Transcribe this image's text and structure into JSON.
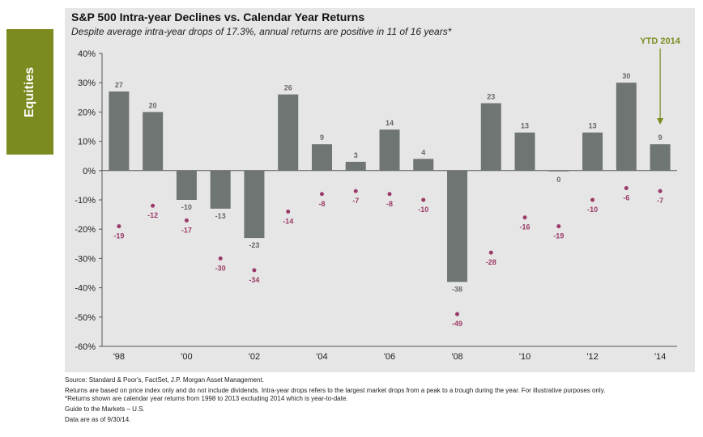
{
  "side_tab": {
    "label": "Equities"
  },
  "colors": {
    "bar": "#6e7572",
    "drop": "#9b3a68",
    "annotation": "#7d8a1f",
    "tab": "#7d8a1f",
    "panel": "#e6e6e6"
  },
  "chart_data": {
    "type": "bar",
    "title": "S&P 500 Intra-year Declines vs. Calendar Year Returns",
    "subtitle": "Despite average intra-year drops of 17.3%, annual returns are positive in 11 of 16 years*",
    "ylim": [
      -60,
      40
    ],
    "yticks": [
      40,
      30,
      20,
      10,
      0,
      -10,
      -20,
      -30,
      -40,
      -50,
      -60
    ],
    "ytick_labels": [
      "40%",
      "30%",
      "20%",
      "10%",
      "0%",
      "-10%",
      "-20%",
      "-30%",
      "-40%",
      "-50%",
      "-60%"
    ],
    "years": [
      1998,
      1999,
      2000,
      2001,
      2002,
      2003,
      2004,
      2005,
      2006,
      2007,
      2008,
      2009,
      2010,
      2011,
      2012,
      2013,
      2014
    ],
    "xtick_labels": [
      "'98",
      "'00",
      "'02",
      "'04",
      "'06",
      "'08",
      "'10",
      "'12",
      "'14"
    ],
    "series": [
      {
        "name": "Calendar year return",
        "kind": "bar",
        "values": [
          27,
          20,
          -10,
          -13,
          -23,
          26,
          9,
          3,
          14,
          4,
          -38,
          23,
          13,
          0,
          13,
          30,
          9
        ],
        "labels": [
          "27",
          "20",
          "-10",
          "-13",
          "-23",
          "26",
          "9",
          "3",
          "14",
          "4",
          "-38",
          "23",
          "13",
          "0",
          "13",
          "30",
          "9"
        ]
      },
      {
        "name": "Intra-year decline",
        "kind": "scatter",
        "values": [
          -19,
          -12,
          -17,
          -30,
          -34,
          -14,
          -8,
          -7,
          -8,
          -10,
          -49,
          -28,
          -16,
          -19,
          -10,
          -6,
          -7
        ],
        "labels": [
          "-19",
          "-12",
          "-17",
          "-30",
          "-34",
          "-14",
          "-8",
          "-7",
          "-8",
          "-10",
          "-49",
          "-28",
          "-16",
          "-19",
          "-10",
          "-6",
          "-7"
        ]
      }
    ],
    "annotation": {
      "text": "YTD 2014",
      "year": 2014
    }
  },
  "footnotes": {
    "source": "Source: Standard & Poor's, FactSet, J.P. Morgan Asset Management.",
    "note": "Returns are based on price index only and do not include dividends. Intra-year drops refers to the largest market drops from a peak to a trough during the year. For illustrative purposes only. *Returns shown are calendar year returns from 1998 to 2013 excluding 2014 which is year-to-date.",
    "guide": "Guide to the Markets – U.S.",
    "date": "Data are as of 9/30/14."
  }
}
